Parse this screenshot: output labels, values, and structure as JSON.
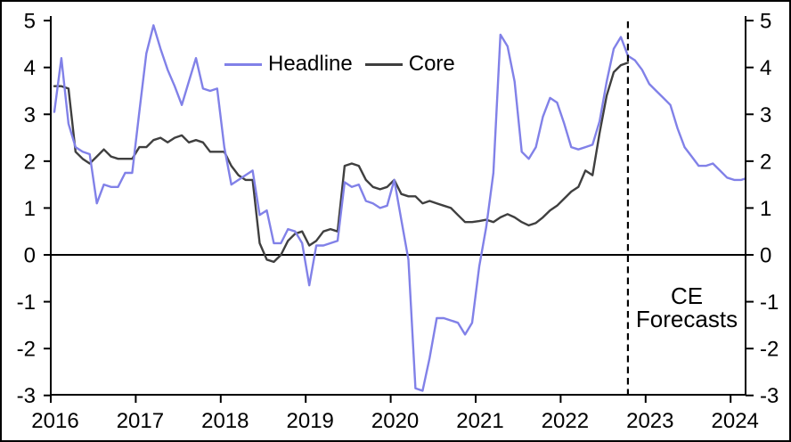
{
  "chart_data": {
    "type": "line",
    "title": "",
    "frequency": "monthly",
    "x_start": "2016-01",
    "x_axis": {
      "tick_labels": [
        "2016",
        "2017",
        "2018",
        "2019",
        "2020",
        "2021",
        "2022",
        "2023",
        "2024"
      ]
    },
    "y_axis": {
      "min": -3,
      "max": 5,
      "step": 1,
      "ticks": [
        -3,
        -2,
        -1,
        0,
        1,
        2,
        3,
        4,
        5
      ],
      "mirrored_right": true,
      "zero_line": true,
      "grid": false
    },
    "legend": {
      "position": "top-center"
    },
    "forecast": {
      "boundary": "2022-10",
      "line_style": "dashed",
      "annotation_line1": "CE",
      "annotation_line2": "Forecasts"
    },
    "series": [
      {
        "name": "Headline",
        "color": "#8181e8",
        "values": [
          3.05,
          4.2,
          2.8,
          2.3,
          2.2,
          2.15,
          1.1,
          1.5,
          1.45,
          1.45,
          1.75,
          1.75,
          3.05,
          4.3,
          4.9,
          4.4,
          3.95,
          3.6,
          3.2,
          3.7,
          4.2,
          3.55,
          3.5,
          3.55,
          2.3,
          1.5,
          1.6,
          1.7,
          1.8,
          0.85,
          0.95,
          0.25,
          0.25,
          0.55,
          0.5,
          0.25,
          -0.65,
          0.2,
          0.2,
          0.25,
          0.3,
          1.55,
          1.45,
          1.5,
          1.15,
          1.1,
          1.0,
          1.05,
          1.6,
          0.75,
          -0.1,
          -2.85,
          -2.9,
          -2.2,
          -1.35,
          -1.35,
          -1.4,
          -1.45,
          -1.7,
          -1.45,
          -0.25,
          0.6,
          1.75,
          4.7,
          4.45,
          3.7,
          2.2,
          2.05,
          2.3,
          2.95,
          3.35,
          3.25,
          2.8,
          2.3,
          2.25,
          2.3,
          2.35,
          2.85,
          3.7,
          4.4,
          4.65,
          4.25,
          4.15,
          3.95,
          3.65,
          3.5,
          3.35,
          3.2,
          2.7,
          2.3,
          2.1,
          1.9,
          1.9,
          1.95,
          1.8,
          1.65,
          1.6,
          1.6,
          1.65
        ]
      },
      {
        "name": "Core",
        "color": "#3f3f3f",
        "values": [
          3.6,
          3.6,
          3.55,
          2.2,
          2.05,
          1.95,
          2.1,
          2.25,
          2.1,
          2.05,
          2.05,
          2.05,
          2.3,
          2.3,
          2.45,
          2.5,
          2.4,
          2.5,
          2.55,
          2.4,
          2.45,
          2.4,
          2.2,
          2.2,
          2.2,
          1.9,
          1.7,
          1.6,
          1.6,
          0.25,
          -0.1,
          -0.15,
          0.0,
          0.3,
          0.45,
          0.5,
          0.2,
          0.3,
          0.5,
          0.55,
          0.5,
          1.9,
          1.95,
          1.9,
          1.6,
          1.45,
          1.4,
          1.45,
          1.6,
          1.3,
          1.25,
          1.25,
          1.1,
          1.15,
          1.1,
          1.05,
          1.0,
          0.85,
          0.7,
          0.7,
          0.72,
          0.75,
          0.7,
          0.8,
          0.87,
          0.8,
          0.7,
          0.63,
          0.68,
          0.8,
          0.95,
          1.05,
          1.2,
          1.35,
          1.45,
          1.8,
          1.7,
          2.6,
          3.4,
          3.9,
          4.05,
          4.1
        ]
      }
    ]
  }
}
